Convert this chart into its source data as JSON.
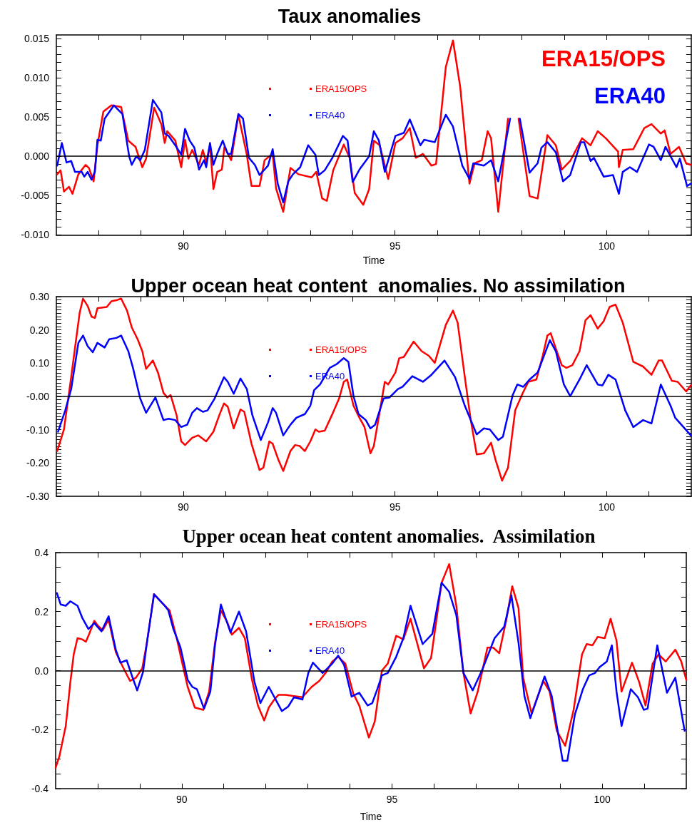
{
  "chart_data": [
    {
      "type": "line",
      "title": "Taux anomalies",
      "xlabel": "Time",
      "annotations": [
        "ERA15/OPS",
        "ERA40"
      ],
      "xlim": [
        87,
        102
      ],
      "xticks": [
        {
          "value": 88,
          "label": null
        },
        {
          "value": 89,
          "label": null
        },
        90,
        {
          "value": 91,
          "label": null
        },
        {
          "value": 92,
          "label": null
        },
        {
          "value": 93,
          "label": null
        },
        {
          "value": 94,
          "label": null
        },
        95,
        {
          "value": 96,
          "label": null
        },
        {
          "value": 97,
          "label": null
        },
        {
          "value": 98,
          "label": null
        },
        {
          "value": 99,
          "label": null
        },
        100,
        {
          "value": 101,
          "label": null
        }
      ],
      "ylim": [
        -0.0101,
        0.0155
      ],
      "yticks": [
        {
          "value": -0.01,
          "label": "-0.010"
        },
        {
          "value": -0.009,
          "label": null
        },
        {
          "value": -0.008,
          "label": null
        },
        {
          "value": -0.007,
          "label": null
        },
        {
          "value": -0.006,
          "label": null
        },
        {
          "value": -0.005,
          "label": "-0.005"
        },
        {
          "value": -0.004,
          "label": null
        },
        {
          "value": -0.003,
          "label": null
        },
        {
          "value": -0.002,
          "label": null
        },
        {
          "value": -0.001,
          "label": null
        },
        {
          "value": 0,
          "label": "0.000"
        },
        {
          "value": 0.001,
          "label": null
        },
        {
          "value": 0.002,
          "label": null
        },
        {
          "value": 0.003,
          "label": null
        },
        {
          "value": 0.004,
          "label": null
        },
        {
          "value": 0.005,
          "label": "0.005"
        },
        {
          "value": 0.006,
          "label": null
        },
        {
          "value": 0.007,
          "label": null
        },
        {
          "value": 0.008,
          "label": null
        },
        {
          "value": 0.009,
          "label": null
        },
        {
          "value": 0.01,
          "label": "0.010"
        },
        {
          "value": 0.011,
          "label": null
        },
        {
          "value": 0.012,
          "label": null
        },
        {
          "value": 0.013,
          "label": null
        },
        {
          "value": 0.014,
          "label": null
        },
        {
          "value": 0.015,
          "label": "0.015"
        }
      ],
      "grid": false,
      "legend": "top",
      "marker": "none",
      "line_style": "solid",
      "ref_lines": [
        {
          "axis": "y",
          "value": 0,
          "color": "#000000"
        }
      ],
      "series": [
        {
          "name": "ERA15/OPS",
          "color": "#ff0000",
          "x": [
            87.02,
            87.1,
            87.18,
            87.3,
            87.38,
            87.52,
            87.69,
            87.77,
            87.88,
            87.97,
            88.11,
            88.3,
            88.53,
            88.7,
            88.87,
            89.03,
            89.12,
            89.31,
            89.48,
            89.56,
            89.62,
            89.81,
            89.95,
            90.04,
            90.12,
            90.21,
            90.37,
            90.46,
            90.54,
            90.63,
            90.71,
            90.8,
            90.91,
            90.97,
            91.13,
            91.3,
            91.5,
            91.61,
            91.8,
            91.92,
            92.11,
            92.19,
            92.36,
            92.53,
            92.72,
            93.03,
            93.14,
            93.28,
            93.39,
            93.54,
            93.79,
            93.93,
            94.05,
            94.25,
            94.39,
            94.5,
            94.64,
            94.84,
            95.01,
            95.18,
            95.35,
            95.49,
            95.66,
            95.86,
            95.97,
            96.2,
            96.37,
            96.54,
            96.76,
            96.88,
            97.05,
            97.19,
            97.27,
            97.44,
            97.67,
            97.8,
            97.92,
            98.18,
            98.37,
            98.6,
            98.8,
            98.94,
            99.14,
            99.42,
            99.62,
            99.79,
            99.98,
            100.27,
            100.29,
            100.38,
            100.63,
            100.89,
            101.06,
            101.28,
            101.37,
            101.51,
            101.71,
            101.88,
            101.99
          ],
          "values": [
            -0.0023,
            -0.0018,
            -0.0045,
            -0.0039,
            -0.0048,
            -0.0023,
            -0.0011,
            -0.0015,
            -0.0032,
            0.0014,
            0.0057,
            0.0065,
            0.0063,
            0.002,
            0.0012,
            -0.0014,
            -0.0003,
            0.0062,
            0.0041,
            0.0017,
            0.0032,
            0.002,
            -0.0014,
            0.0021,
            -0.0003,
            0.0008,
            -0.0011,
            0.0008,
            -0.0008,
            0.0015,
            -0.0042,
            -0.002,
            -0.0017,
            0.0012,
            -0.0005,
            0.0053,
            0.0002,
            -0.0038,
            -0.0038,
            -0.0005,
            0.0003,
            -0.0041,
            -0.0071,
            -0.0015,
            -0.0023,
            -0.0027,
            -0.002,
            -0.0054,
            -0.0057,
            -0.0018,
            0.0015,
            -0.0002,
            -0.0047,
            -0.0062,
            -0.0042,
            0.002,
            0.0014,
            -0.0029,
            0.0017,
            0.0023,
            0.0036,
            -0.0002,
            0.0003,
            -0.0012,
            -0.001,
            0.0114,
            0.0148,
            0.0089,
            -0.0035,
            -0.0009,
            -0.0005,
            0.0032,
            0.0023,
            -0.0071,
            0.0048,
            null,
            0.0048,
            -0.0051,
            -0.0054,
            0.0027,
            0.0014,
            -0.0017,
            -0.0006,
            0.0023,
            0.0014,
            0.0032,
            0.0023,
            0.0006,
            -0.0014,
            0.0008,
            0.0009,
            0.0036,
            0.0041,
            0.0029,
            0.0033,
            0.0003,
            0.0012,
            -0.0009,
            -0.0011
          ]
        },
        {
          "name": "ERA40",
          "color": "#0000ff",
          "x": [
            87.02,
            87.13,
            87.24,
            87.35,
            87.44,
            87.6,
            87.66,
            87.74,
            87.83,
            87.91,
            87.97,
            88.05,
            88.14,
            88.36,
            88.56,
            88.72,
            88.78,
            88.89,
            88.98,
            89.09,
            89.28,
            89.48,
            89.56,
            89.65,
            89.81,
            89.95,
            90.04,
            90.15,
            90.26,
            90.37,
            90.49,
            90.54,
            90.63,
            90.71,
            90.8,
            90.93,
            91.05,
            91.13,
            91.3,
            91.41,
            91.55,
            91.69,
            91.8,
            92.0,
            92.11,
            92.23,
            92.36,
            92.48,
            92.59,
            92.76,
            92.95,
            93.12,
            93.2,
            93.34,
            93.51,
            93.77,
            93.88,
            94.0,
            94.16,
            94.39,
            94.5,
            94.62,
            94.76,
            95.01,
            95.21,
            95.35,
            95.6,
            95.69,
            95.94,
            96.2,
            96.37,
            96.59,
            96.76,
            96.85,
            97.1,
            97.27,
            97.44,
            97.72,
            97.83,
            97.95,
            98.18,
            98.37,
            98.46,
            98.6,
            98.8,
            98.97,
            99.14,
            99.39,
            99.47,
            99.62,
            99.7,
            99.93,
            100.15,
            100.29,
            100.38,
            100.55,
            100.72,
            101.0,
            101.11,
            101.28,
            101.39,
            101.65,
            101.73,
            101.9,
            101.99
          ],
          "values": [
            -0.0012,
            0.0017,
            -0.0008,
            -0.0006,
            -0.002,
            -0.002,
            -0.0026,
            -0.002,
            -0.003,
            -0.002,
            0.0021,
            0.002,
            0.0048,
            0.0065,
            0.0054,
            0.0,
            -0.0011,
            0.0,
            -0.0005,
            0.0008,
            0.0072,
            0.0056,
            0.0029,
            0.0026,
            0.0014,
            0.0002,
            0.0035,
            0.002,
            0.0011,
            -0.0017,
            -0.0005,
            -0.0014,
            0.0017,
            -0.0011,
            0.0003,
            0.002,
            0.0003,
            0.0003,
            0.0054,
            0.0048,
            -0.0002,
            -0.0011,
            -0.0024,
            -0.0012,
            0.0009,
            -0.0035,
            -0.0059,
            -0.0032,
            -0.0023,
            -0.0014,
            0.0014,
            0.0002,
            -0.0024,
            -0.0018,
            -0.0003,
            0.0026,
            0.002,
            -0.0033,
            -0.0017,
            0.0,
            0.0032,
            0.002,
            -0.002,
            0.0026,
            0.003,
            0.0047,
            0.0014,
            0.0021,
            0.0018,
            0.0053,
            0.0038,
            -0.0012,
            -0.0029,
            -0.0009,
            -0.0012,
            -0.0005,
            -0.0032,
            0.0048,
            null,
            0.0048,
            -0.0021,
            -0.0009,
            0.0011,
            0.0018,
            0.0005,
            -0.0032,
            -0.0024,
            0.0018,
            0.0018,
            -0.0006,
            -0.0002,
            -0.0026,
            -0.0024,
            -0.0048,
            -0.002,
            -0.0014,
            -0.002,
            0.0015,
            0.0012,
            -0.0005,
            0.0012,
            -0.0014,
            -0.0003,
            -0.0038,
            -0.0035
          ]
        }
      ]
    },
    {
      "type": "line",
      "title": "Upper ocean heat content  anomalies. No assimilation",
      "xlim": [
        87,
        102
      ],
      "xticks": [
        {
          "value": 88,
          "label": null
        },
        {
          "value": 89,
          "label": null
        },
        90,
        {
          "value": 91,
          "label": null
        },
        {
          "value": 92,
          "label": null
        },
        {
          "value": 93,
          "label": null
        },
        {
          "value": 94,
          "label": null
        },
        95,
        {
          "value": 96,
          "label": null
        },
        {
          "value": 97,
          "label": null
        },
        {
          "value": 98,
          "label": null
        },
        {
          "value": 99,
          "label": null
        },
        100,
        {
          "value": 101,
          "label": null
        }
      ],
      "ylim": [
        -0.3,
        0.3
      ],
      "yticks": [
        {
          "value": -0.3,
          "label": "-0.30"
        },
        {
          "value": -0.29,
          "label": null
        },
        {
          "value": -0.28,
          "label": null
        },
        {
          "value": -0.27,
          "label": null
        },
        {
          "value": -0.26,
          "label": null
        },
        {
          "value": -0.25,
          "label": null
        },
        {
          "value": -0.24,
          "label": null
        },
        {
          "value": -0.23,
          "label": null
        },
        {
          "value": -0.22,
          "label": null
        },
        {
          "value": -0.21,
          "label": null
        },
        {
          "value": -0.2,
          "label": "-0.20"
        },
        {
          "value": -0.19,
          "label": null
        },
        {
          "value": -0.18,
          "label": null
        },
        {
          "value": -0.17,
          "label": null
        },
        {
          "value": -0.16,
          "label": null
        },
        {
          "value": -0.15,
          "label": null
        },
        {
          "value": -0.14,
          "label": null
        },
        {
          "value": -0.13,
          "label": null
        },
        {
          "value": -0.12,
          "label": null
        },
        {
          "value": -0.11,
          "label": null
        },
        {
          "value": -0.1,
          "label": "-0.10"
        },
        {
          "value": -0.09,
          "label": null
        },
        {
          "value": -0.08,
          "label": null
        },
        {
          "value": -0.07,
          "label": null
        },
        {
          "value": -0.06,
          "label": null
        },
        {
          "value": -0.05,
          "label": null
        },
        {
          "value": -0.04,
          "label": null
        },
        {
          "value": -0.03,
          "label": null
        },
        {
          "value": -0.02,
          "label": null
        },
        {
          "value": -0.01,
          "label": null
        },
        {
          "value": 0,
          "label": "-0.00"
        },
        {
          "value": 0.01,
          "label": null
        },
        {
          "value": 0.02,
          "label": null
        },
        {
          "value": 0.03,
          "label": null
        },
        {
          "value": 0.04,
          "label": null
        },
        {
          "value": 0.05,
          "label": null
        },
        {
          "value": 0.06,
          "label": null
        },
        {
          "value": 0.07,
          "label": null
        },
        {
          "value": 0.08,
          "label": null
        },
        {
          "value": 0.09,
          "label": null
        },
        {
          "value": 0.1,
          "label": "0.10"
        },
        {
          "value": 0.11,
          "label": null
        },
        {
          "value": 0.12,
          "label": null
        },
        {
          "value": 0.13,
          "label": null
        },
        {
          "value": 0.14,
          "label": null
        },
        {
          "value": 0.15,
          "label": null
        },
        {
          "value": 0.16,
          "label": null
        },
        {
          "value": 0.17,
          "label": null
        },
        {
          "value": 0.18,
          "label": null
        },
        {
          "value": 0.19,
          "label": null
        },
        {
          "value": 0.2,
          "label": "0.20"
        },
        {
          "value": 0.21,
          "label": null
        },
        {
          "value": 0.22,
          "label": null
        },
        {
          "value": 0.23,
          "label": null
        },
        {
          "value": 0.24,
          "label": null
        },
        {
          "value": 0.25,
          "label": null
        },
        {
          "value": 0.26,
          "label": null
        },
        {
          "value": 0.27,
          "label": null
        },
        {
          "value": 0.28,
          "label": null
        },
        {
          "value": 0.29,
          "label": null
        },
        {
          "value": 0.3,
          "label": "0.30"
        }
      ],
      "grid": false,
      "legend": "top",
      "marker": "none",
      "line_style": "solid",
      "ref_lines": [
        {
          "axis": "y",
          "value": 0,
          "color": "#000000"
        }
      ],
      "series": [
        {
          "name": "ERA15/OPS",
          "color": "#ff0000",
          "x": [
            87.02,
            87.18,
            87.35,
            87.46,
            87.55,
            87.63,
            87.74,
            87.83,
            87.91,
            87.97,
            88.19,
            88.3,
            88.44,
            88.53,
            88.67,
            88.78,
            88.92,
            89.03,
            89.12,
            89.28,
            89.4,
            89.53,
            89.62,
            89.7,
            89.84,
            89.95,
            90.04,
            90.21,
            90.35,
            90.54,
            90.71,
            90.85,
            90.96,
            91.05,
            91.19,
            91.35,
            91.44,
            91.61,
            91.8,
            91.89,
            92.03,
            92.11,
            92.25,
            92.36,
            92.53,
            92.64,
            92.75,
            92.87,
            93.0,
            93.12,
            93.2,
            93.34,
            93.51,
            93.68,
            93.79,
            93.87,
            94.02,
            94.16,
            94.28,
            94.42,
            94.5,
            94.76,
            94.84,
            95.01,
            95.1,
            95.21,
            95.44,
            95.63,
            95.8,
            95.94,
            96.2,
            96.37,
            96.48,
            96.65,
            96.79,
            96.93,
            97.1,
            97.27,
            97.38,
            97.53,
            97.67,
            97.84,
            98.01,
            98.15,
            98.34,
            98.49,
            98.6,
            98.68,
            98.8,
            98.94,
            99.05,
            99.19,
            99.36,
            99.5,
            99.62,
            99.79,
            99.93,
            100.07,
            100.21,
            100.38,
            100.63,
            100.86,
            101.06,
            101.23,
            101.31,
            101.54,
            101.68,
            101.88,
            101.99
          ],
          "values": [
            -0.164,
            -0.099,
            0.058,
            0.165,
            0.251,
            0.294,
            0.272,
            0.24,
            0.236,
            0.265,
            0.269,
            0.286,
            0.29,
            0.294,
            0.258,
            0.208,
            0.172,
            0.136,
            0.083,
            0.108,
            0.072,
            0.011,
            -0.003,
            0.004,
            -0.056,
            -0.135,
            -0.146,
            -0.124,
            -0.117,
            -0.135,
            -0.106,
            -0.056,
            -0.021,
            -0.031,
            -0.096,
            -0.039,
            -0.046,
            -0.142,
            -0.221,
            -0.214,
            -0.135,
            -0.142,
            -0.192,
            -0.224,
            -0.164,
            -0.146,
            -0.149,
            -0.164,
            -0.135,
            -0.099,
            -0.106,
            -0.103,
            -0.056,
            -0.006,
            0.044,
            0.051,
            -0.028,
            -0.064,
            -0.092,
            -0.171,
            -0.149,
            0.044,
            0.036,
            0.072,
            0.115,
            0.119,
            0.165,
            0.136,
            0.122,
            0.101,
            0.215,
            0.258,
            0.222,
            0.058,
            -0.071,
            -0.174,
            -0.171,
            -0.139,
            -0.192,
            -0.253,
            -0.214,
            -0.042,
            0.008,
            0.044,
            0.051,
            0.122,
            0.183,
            0.19,
            0.144,
            0.094,
            0.086,
            0.094,
            0.136,
            0.229,
            0.244,
            0.204,
            0.226,
            0.269,
            0.276,
            0.222,
            0.104,
            0.09,
            0.065,
            0.108,
            0.108,
            0.047,
            0.044,
            0.015,
            0.033
          ]
        },
        {
          "name": "ERA40",
          "color": "#0000ff",
          "x": [
            87.04,
            87.21,
            87.35,
            87.52,
            87.63,
            87.74,
            87.86,
            87.97,
            88.14,
            88.25,
            88.42,
            88.53,
            88.7,
            88.81,
            88.98,
            89.12,
            89.34,
            89.53,
            89.65,
            89.81,
            89.95,
            90.09,
            90.21,
            90.32,
            90.46,
            90.57,
            90.74,
            90.96,
            91.05,
            91.19,
            91.35,
            91.5,
            91.63,
            91.83,
            92.0,
            92.11,
            92.19,
            92.36,
            92.53,
            92.67,
            92.87,
            93.0,
            93.09,
            93.23,
            93.46,
            93.62,
            93.79,
            93.9,
            94.02,
            94.14,
            94.31,
            94.42,
            94.53,
            94.73,
            94.87,
            95.07,
            95.18,
            95.41,
            95.66,
            95.86,
            96.17,
            96.42,
            96.65,
            96.93,
            97.1,
            97.24,
            97.44,
            97.55,
            97.78,
            97.89,
            98.03,
            98.18,
            98.37,
            98.66,
            98.8,
            98.99,
            99.14,
            99.36,
            99.53,
            99.79,
            99.9,
            100.04,
            100.21,
            100.44,
            100.63,
            100.86,
            101.06,
            101.28,
            101.51,
            101.62,
            101.99
          ],
          "values": [
            -0.106,
            -0.042,
            0.022,
            0.161,
            0.183,
            0.151,
            0.133,
            0.161,
            0.147,
            0.172,
            0.176,
            0.183,
            0.136,
            0.086,
            -0.006,
            -0.049,
            -0.003,
            -0.071,
            -0.067,
            -0.071,
            -0.092,
            -0.085,
            -0.049,
            -0.035,
            -0.046,
            -0.042,
            -0.006,
            0.058,
            0.044,
            0.008,
            0.054,
            0.022,
            -0.056,
            -0.131,
            -0.078,
            -0.035,
            -0.049,
            -0.117,
            -0.085,
            -0.064,
            -0.053,
            -0.028,
            0.019,
            0.036,
            0.086,
            0.097,
            0.115,
            0.104,
            0.001,
            -0.053,
            -0.071,
            -0.096,
            -0.085,
            -0.006,
            -0.003,
            0.022,
            0.029,
            0.061,
            0.044,
            0.065,
            0.108,
            0.058,
            -0.028,
            -0.114,
            -0.096,
            -0.099,
            -0.131,
            -0.121,
            0.004,
            0.036,
            0.029,
            0.051,
            0.072,
            0.169,
            0.136,
            0.036,
            0.001,
            0.051,
            0.094,
            0.036,
            0.033,
            0.065,
            0.051,
            -0.042,
            -0.092,
            -0.071,
            -0.081,
            0.036,
            -0.028,
            -0.064,
            -0.117
          ]
        }
      ]
    },
    {
      "type": "line",
      "title": "Upper ocean heat content anomalies.  Assimilation",
      "xlabel": "Time",
      "xlim": [
        87,
        102
      ],
      "xticks": [
        {
          "value": 88,
          "label": null
        },
        {
          "value": 89,
          "label": null
        },
        90,
        {
          "value": 91,
          "label": null
        },
        {
          "value": 92,
          "label": null
        },
        {
          "value": 93,
          "label": null
        },
        {
          "value": 94,
          "label": null
        },
        95,
        {
          "value": 96,
          "label": null
        },
        {
          "value": 97,
          "label": null
        },
        {
          "value": 98,
          "label": null
        },
        {
          "value": 99,
          "label": null
        },
        100,
        {
          "value": 101,
          "label": null
        }
      ],
      "ylim": [
        -0.4,
        0.4
      ],
      "yticks": [
        -0.4,
        {
          "value": -0.35,
          "label": null
        },
        {
          "value": -0.3,
          "label": null
        },
        {
          "value": -0.25,
          "label": null
        },
        -0.2,
        {
          "value": -0.15,
          "label": null
        },
        {
          "value": -0.1,
          "label": null
        },
        {
          "value": -0.05,
          "label": null
        },
        {
          "value": 0,
          "label": "0.0"
        },
        {
          "value": 0.05,
          "label": null
        },
        {
          "value": 0.1,
          "label": null
        },
        {
          "value": 0.15,
          "label": null
        },
        0.2,
        {
          "value": 0.25,
          "label": null
        },
        {
          "value": 0.3,
          "label": null
        },
        {
          "value": 0.35,
          "label": null
        },
        0.4
      ],
      "grid": false,
      "legend": "top",
      "marker": "none",
      "line_style": "solid",
      "ref_lines": [
        {
          "axis": "y",
          "value": 0,
          "color": "#000000"
        }
      ],
      "series": [
        {
          "name": "ERA15/OPS",
          "color": "#ff0000",
          "x": [
            87.0,
            87.09,
            87.24,
            87.35,
            87.43,
            87.52,
            87.63,
            87.72,
            87.8,
            87.92,
            88.0,
            88.12,
            88.26,
            88.43,
            88.6,
            88.77,
            88.91,
            89.06,
            89.17,
            89.34,
            89.57,
            89.71,
            89.88,
            89.99,
            90.14,
            90.31,
            90.51,
            90.65,
            90.79,
            90.93,
            91.08,
            91.19,
            91.36,
            91.5,
            91.67,
            91.81,
            91.96,
            92.07,
            92.18,
            92.3,
            92.47,
            92.64,
            92.87,
            93.09,
            93.27,
            93.44,
            93.58,
            93.72,
            93.89,
            94.08,
            94.22,
            94.45,
            94.59,
            94.76,
            94.9,
            95.1,
            95.27,
            95.44,
            95.76,
            95.93,
            96.18,
            96.36,
            96.53,
            96.7,
            96.87,
            97.04,
            97.27,
            97.41,
            97.55,
            97.72,
            97.86,
            98.01,
            98.12,
            98.32,
            98.6,
            98.75,
            98.92,
            99.12,
            99.32,
            99.52,
            99.63,
            99.77,
            99.89,
            100.06,
            100.2,
            100.34,
            100.46,
            100.71,
            100.88,
            101.03,
            101.2,
            101.34,
            101.51,
            101.74,
            101.88,
            102.0
          ],
          "values": [
            -0.329,
            -0.29,
            -0.188,
            -0.039,
            0.055,
            0.11,
            0.106,
            0.098,
            0.125,
            0.169,
            0.153,
            0.137,
            0.173,
            0.063,
            0.012,
            -0.035,
            -0.024,
            0.008,
            0.094,
            0.259,
            0.224,
            0.204,
            0.11,
            0.039,
            -0.055,
            -0.125,
            -0.133,
            -0.071,
            0.094,
            0.204,
            0.165,
            0.122,
            0.145,
            0.11,
            -0.031,
            -0.118,
            -0.169,
            -0.125,
            -0.102,
            -0.082,
            -0.082,
            -0.086,
            -0.09,
            -0.055,
            -0.035,
            -0.004,
            0.031,
            0.047,
            0.024,
            -0.078,
            -0.118,
            -0.227,
            -0.173,
            0.0,
            0.024,
            0.118,
            0.106,
            0.176,
            0.008,
            0.043,
            0.298,
            0.361,
            0.22,
            -0.008,
            -0.145,
            -0.071,
            0.078,
            0.078,
            0.059,
            0.173,
            0.286,
            0.212,
            -0.024,
            -0.145,
            -0.035,
            -0.071,
            -0.204,
            -0.255,
            -0.133,
            0.055,
            0.09,
            0.086,
            0.114,
            0.11,
            0.176,
            0.102,
            -0.071,
            0.027,
            -0.039,
            -0.118,
            0.024,
            0.055,
            0.031,
            0.071,
            0.031,
            -0.031
          ]
        },
        {
          "name": "ERA40",
          "color": "#0000ff",
          "x": [
            87.03,
            87.12,
            87.24,
            87.35,
            87.52,
            87.63,
            87.78,
            87.92,
            88.09,
            88.26,
            88.43,
            88.54,
            88.69,
            88.83,
            88.94,
            89.08,
            89.17,
            89.34,
            89.57,
            89.68,
            89.8,
            89.97,
            90.14,
            90.25,
            90.36,
            90.53,
            90.68,
            90.79,
            90.93,
            91.16,
            91.36,
            91.53,
            91.73,
            91.87,
            92.07,
            92.38,
            92.53,
            92.67,
            92.87,
            93.01,
            93.12,
            93.35,
            93.58,
            93.72,
            93.86,
            94.04,
            94.22,
            94.42,
            94.53,
            94.65,
            94.76,
            94.9,
            95.1,
            95.27,
            95.44,
            95.73,
            95.96,
            96.18,
            96.36,
            96.53,
            96.7,
            96.92,
            97.15,
            97.44,
            97.67,
            97.84,
            98.01,
            98.15,
            98.29,
            98.63,
            98.8,
            99.06,
            99.17,
            99.35,
            99.54,
            99.69,
            99.83,
            99.94,
            100.11,
            100.23,
            100.34,
            100.46,
            100.68,
            100.85,
            100.99,
            101.08,
            101.31,
            101.54,
            101.74,
            101.96
          ],
          "values": [
            0.263,
            0.224,
            0.22,
            0.235,
            0.22,
            0.18,
            0.141,
            0.161,
            0.133,
            0.184,
            0.071,
            0.027,
            0.035,
            -0.024,
            -0.067,
            -0.004,
            0.094,
            0.259,
            0.224,
            0.204,
            0.141,
            0.078,
            -0.031,
            -0.055,
            -0.063,
            -0.129,
            -0.071,
            0.086,
            0.224,
            0.129,
            0.2,
            0.133,
            -0.039,
            -0.11,
            -0.055,
            -0.137,
            -0.122,
            -0.09,
            -0.098,
            -0.008,
            0.027,
            -0.008,
            0.024,
            0.051,
            0.02,
            -0.088,
            -0.075,
            -0.118,
            -0.11,
            -0.063,
            -0.016,
            -0.008,
            0.047,
            0.11,
            0.22,
            0.09,
            0.125,
            0.298,
            0.267,
            0.188,
            -0.008,
            -0.067,
            0.004,
            0.11,
            0.149,
            0.255,
            0.094,
            -0.086,
            -0.161,
            -0.02,
            -0.086,
            -0.306,
            -0.306,
            -0.149,
            -0.063,
            -0.016,
            -0.008,
            0.012,
            0.031,
            0.086,
            -0.071,
            -0.188,
            -0.063,
            -0.09,
            -0.133,
            -0.129,
            0.086,
            -0.075,
            -0.024,
            -0.204
          ]
        }
      ]
    }
  ]
}
